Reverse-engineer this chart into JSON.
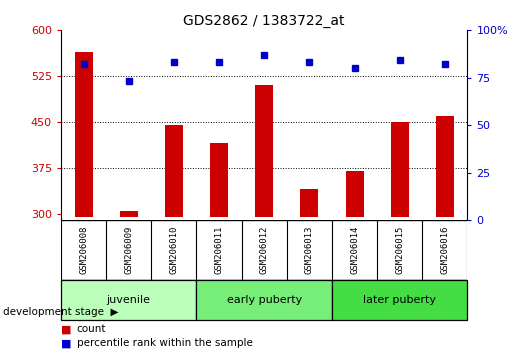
{
  "title": "GDS2862 / 1383722_at",
  "samples": [
    "GSM206008",
    "GSM206009",
    "GSM206010",
    "GSM206011",
    "GSM206012",
    "GSM206013",
    "GSM206014",
    "GSM206015",
    "GSM206016"
  ],
  "counts": [
    565,
    305,
    445,
    415,
    510,
    340,
    370,
    450,
    460
  ],
  "percentile_ranks": [
    82,
    73,
    83,
    83,
    87,
    83,
    80,
    84,
    82
  ],
  "ylim_left": [
    290,
    600
  ],
  "yticks_left": [
    300,
    375,
    450,
    525,
    600
  ],
  "ylim_right": [
    0,
    100
  ],
  "yticks_right": [
    0,
    25,
    50,
    75,
    100
  ],
  "bar_color": "#cc0000",
  "dot_color": "#0000cc",
  "bar_bottom": 295,
  "groups": [
    {
      "label": "juvenile",
      "start": 0,
      "end": 3,
      "color": "#bbffbb"
    },
    {
      "label": "early puberty",
      "start": 3,
      "end": 6,
      "color": "#77ee77"
    },
    {
      "label": "later puberty",
      "start": 6,
      "end": 9,
      "color": "#44dd44"
    }
  ],
  "dev_stage_label": "development stage",
  "legend_count_label": "count",
  "legend_pct_label": "percentile rank within the sample",
  "axis_label_color_left": "#cc0000",
  "axis_label_color_right": "#0000cc",
  "grid_color": "#000000",
  "tick_area_bg": "#cccccc",
  "fig_width": 5.3,
  "fig_height": 3.54,
  "dpi": 100
}
